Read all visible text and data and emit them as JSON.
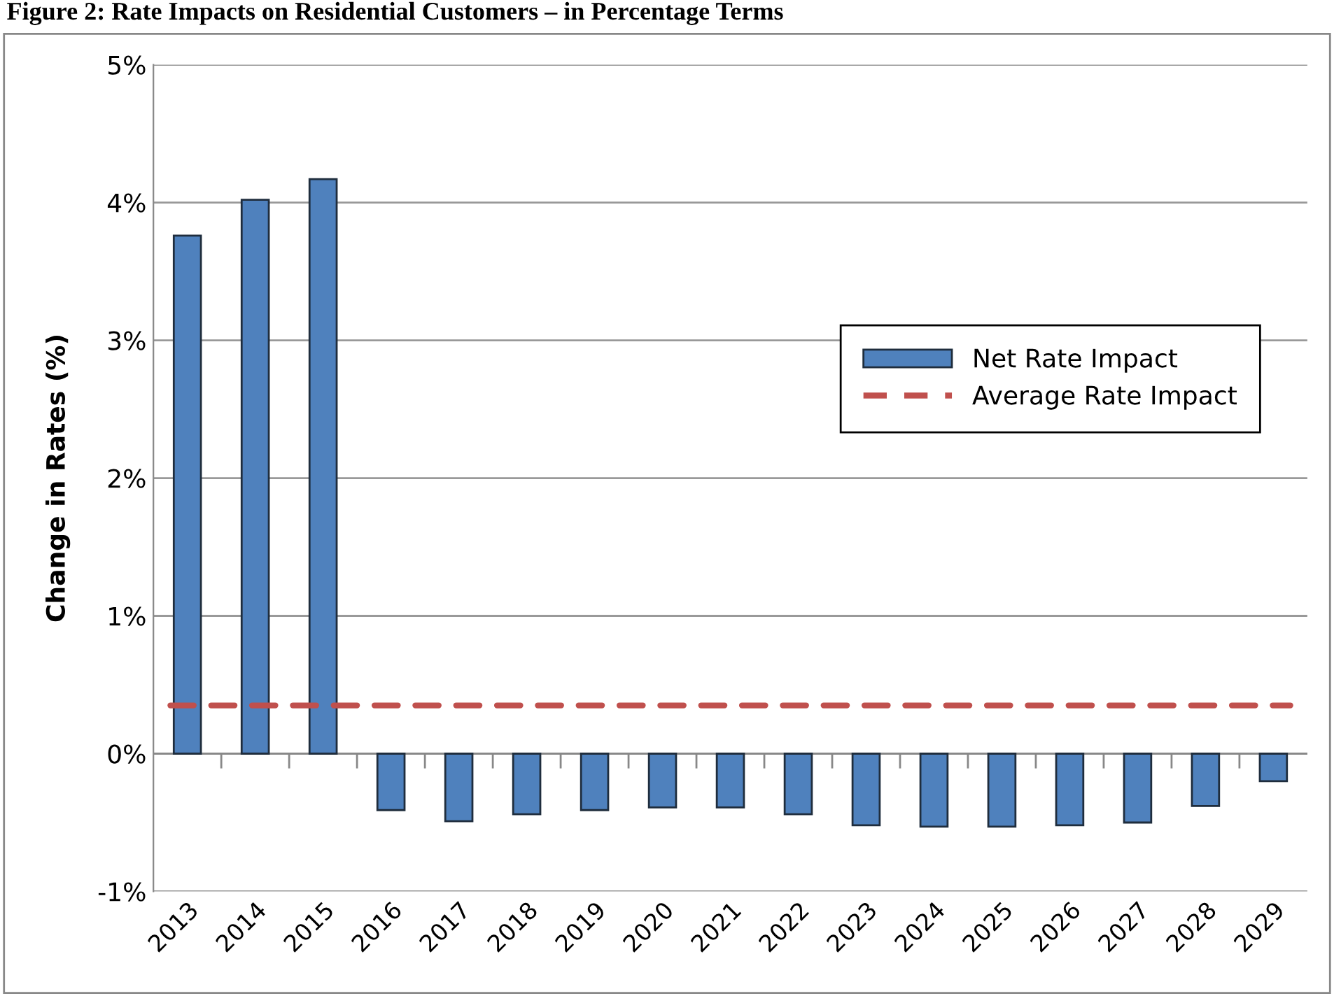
{
  "chart_data": {
    "type": "bar",
    "title": "Figure 2: Rate Impacts on Residential Customers – in Percentage Terms",
    "ylabel": "Change in Rates (%)",
    "categories": [
      "2013",
      "2014",
      "2015",
      "2016",
      "2017",
      "2018",
      "2019",
      "2020",
      "2021",
      "2022",
      "2023",
      "2024",
      "2025",
      "2026",
      "2027",
      "2028",
      "2029"
    ],
    "series": [
      {
        "name": "Net Rate Impact",
        "color": "#4f81bd",
        "values": [
          3.76,
          4.02,
          4.17,
          -0.41,
          -0.49,
          -0.44,
          -0.41,
          -0.39,
          -0.39,
          -0.44,
          -0.52,
          -0.53,
          -0.53,
          -0.52,
          -0.5,
          -0.38,
          -0.2
        ]
      }
    ],
    "ref_lines": [
      {
        "axis": "y",
        "value": 0.35,
        "label": "Average Rate Impact",
        "color": "#c0504d",
        "line_style": "dashed"
      }
    ],
    "ylim": [
      -1,
      5
    ],
    "yticks": [
      {
        "value": -1,
        "label": "-1%"
      },
      {
        "value": 0,
        "label": "0%"
      },
      {
        "value": 1,
        "label": "1%"
      },
      {
        "value": 2,
        "label": "2%"
      },
      {
        "value": 3,
        "label": "3%"
      },
      {
        "value": 4,
        "label": "4%"
      },
      {
        "value": 5,
        "label": "5%"
      }
    ],
    "grid": "y",
    "legend": "right"
  }
}
